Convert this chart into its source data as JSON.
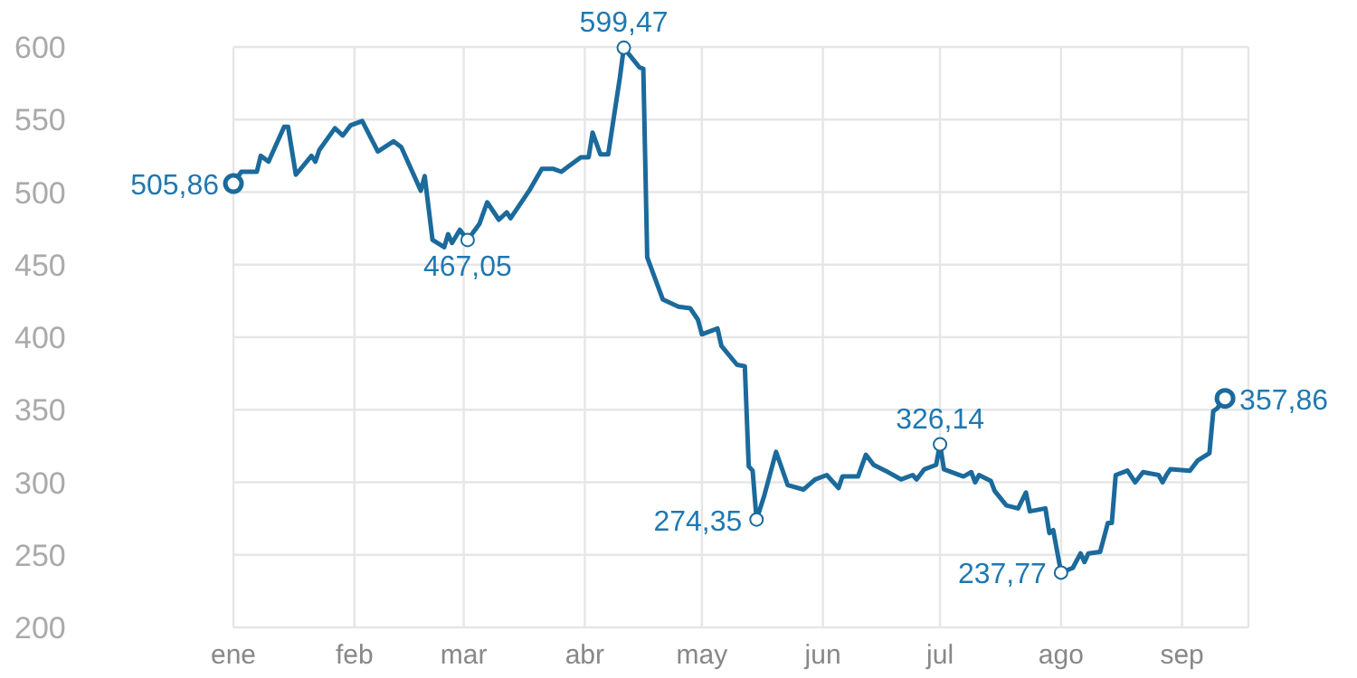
{
  "chart_data": {
    "type": "line",
    "x": [
      "--01-01",
      "--01-03",
      "--01-07",
      "--01-08",
      "--01-10",
      "--01-14",
      "--01-15",
      "--01-17",
      "--01-21",
      "--01-22",
      "--01-23",
      "--01-27",
      "--01-29",
      "--01-31",
      "--02-03",
      "--02-07",
      "--02-11",
      "--02-13",
      "--02-18",
      "--02-19",
      "--02-21",
      "--02-24",
      "--02-25",
      "--02-26",
      "--02-28",
      "--03-02",
      "--03-05",
      "--03-07",
      "--03-10",
      "--03-12",
      "--03-13",
      "--03-15",
      "--03-18",
      "--03-21",
      "--03-24",
      "--03-26",
      "--03-28",
      "--03-31",
      "--04-02",
      "--04-03",
      "--04-05",
      "--04-07",
      "--04-10",
      "--04-11",
      "--04-15",
      "--04-16",
      "--04-17",
      "--04-21",
      "--04-25",
      "--04-28",
      "--04-30",
      "--05-01",
      "--05-05",
      "--05-06",
      "--05-10",
      "--05-12",
      "--05-13",
      "--05-14",
      "--05-15",
      "--05-17",
      "--05-20",
      "--05-23",
      "--05-27",
      "--05-30",
      "--06-02",
      "--06-05",
      "--06-06",
      "--06-10",
      "--06-12",
      "--06-14",
      "--06-17",
      "--06-21",
      "--06-24",
      "--06-25",
      "--06-27",
      "--06-30",
      "--07-01",
      "--07-02",
      "--07-07",
      "--07-09",
      "--07-10",
      "--07-11",
      "--07-14",
      "--07-15",
      "--07-18",
      "--07-21",
      "--07-23",
      "--07-24",
      "--07-28",
      "--07-29",
      "--07-30",
      "--08-01",
      "--08-04",
      "--08-06",
      "--08-07",
      "--08-08",
      "--08-11",
      "--08-13",
      "--08-14",
      "--08-15",
      "--08-18",
      "--08-20",
      "--08-22",
      "--08-26",
      "--08-27",
      "--08-28",
      "--08-29",
      "--09-03",
      "--09-05",
      "--09-08",
      "--09-09",
      "--09-10",
      "--09-12"
    ],
    "series": [
      {
        "color": "#1b6a9c",
        "values": [
          505.86,
          514,
          514,
          525,
          521,
          545,
          545,
          512,
          525,
          521,
          529,
          544,
          539,
          546,
          549,
          528,
          535,
          531,
          501,
          511,
          467,
          462,
          471,
          465,
          474,
          467.05,
          478,
          493,
          481,
          486,
          482,
          490,
          502,
          516,
          516,
          514,
          518,
          524,
          524,
          541,
          526,
          526,
          579,
          599.47,
          586,
          585,
          455,
          426,
          421,
          420,
          412,
          402,
          406,
          394,
          381,
          380,
          311,
          308,
          274.35,
          291,
          321,
          298,
          295,
          302,
          305,
          296,
          304,
          304,
          319,
          312,
          308,
          302,
          305,
          302,
          309,
          312,
          326.14,
          309,
          304,
          307,
          300,
          305,
          301,
          294,
          284,
          282,
          293,
          280,
          282,
          265,
          267,
          237.77,
          241,
          251,
          245,
          251,
          252,
          272,
          272,
          305,
          308,
          300,
          307,
          305,
          300,
          305,
          309,
          308,
          315,
          320,
          349,
          351,
          357.86
        ]
      }
    ],
    "xlim": [
      "--01-01",
      "--09-18"
    ],
    "xticks": [
      {
        "value": "--01-01",
        "label": "ene"
      },
      {
        "value": "--02-01",
        "label": "feb"
      },
      {
        "value": "--03-01",
        "label": "mar"
      },
      {
        "value": "--04-01",
        "label": "abr"
      },
      {
        "value": "--05-01",
        "label": "may"
      },
      {
        "value": "--06-01",
        "label": "jun"
      },
      {
        "value": "--07-01",
        "label": "jul"
      },
      {
        "value": "--08-01",
        "label": "ago"
      },
      {
        "value": "--09-01",
        "label": "sep"
      }
    ],
    "ylim": [
      200,
      600
    ],
    "yticks": [
      200,
      250,
      300,
      350,
      400,
      450,
      500,
      550,
      600
    ],
    "grid": true,
    "marker": "none",
    "line_style": "solid",
    "annotations": [
      {
        "text": "505,86",
        "x": "--01-01",
        "y": 505.86
      },
      {
        "text": "467,05",
        "x": "--03-02",
        "y": 467.05
      },
      {
        "text": "599,47",
        "x": "--04-11",
        "y": 599.47
      },
      {
        "text": "274,35",
        "x": "--05-15",
        "y": 274.35
      },
      {
        "text": "326,14",
        "x": "--07-01",
        "y": 326.14
      },
      {
        "text": "237,77",
        "x": "--08-01",
        "y": 237.77
      },
      {
        "text": "357,86",
        "x": "--09-12",
        "y": 357.86
      }
    ]
  }
}
